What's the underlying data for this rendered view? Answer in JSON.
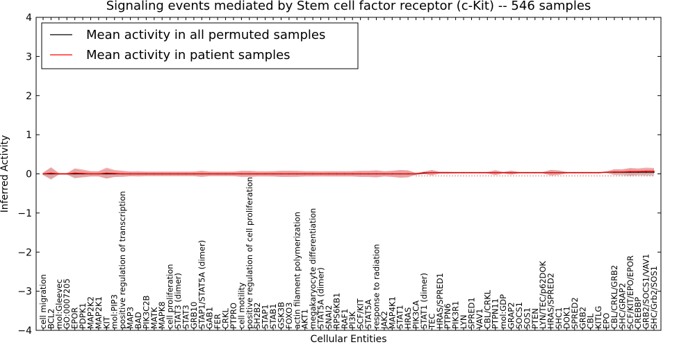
{
  "chart_data": {
    "type": "line",
    "title": "Signaling events mediated by Stem cell factor receptor (c-Kit) -- 546 samples",
    "xlabel": "Cellular Entities",
    "ylabel": "Inferred Activity",
    "ylim": [
      -4,
      4
    ],
    "yticks": [
      "−4",
      "−3",
      "−2",
      "−1",
      "0",
      "1",
      "2",
      "3",
      "4"
    ],
    "grid": false,
    "legend_position": "top-left",
    "colors": {
      "permuted": "#000000",
      "patient": "#ff0000",
      "patient_band": "#f08080",
      "permuted_band": "#b3b3b3"
    },
    "categories": [
      "cell migration",
      "BCL2",
      "mol:Gleevec",
      "GO:0007205",
      "EPOR",
      "PDPK1",
      "MAP2K2",
      "MAP2K1",
      "KIT",
      "mol:PIP3",
      "positive regulation of transcription",
      "MAP3",
      "BAD",
      "PIK3C2B",
      "MATK",
      "MAPK8",
      "cell proliferation",
      "STAT3 (dimer)",
      "STAT3",
      "GRB10",
      "STAP1/STAT5A (dimer)",
      "GAB1",
      "FER",
      "CRKL",
      "PTPRO",
      "cell motility",
      "positive regulation of cell proliferation",
      "SH2B2",
      "STAP1",
      "STAB1",
      "GSK3B",
      "FOXO3",
      "actin filament polymerization",
      "AKT1",
      "megakaryocyte differentiation",
      "STAT5A (dimer)",
      "SNAI2",
      "RPS6KB1",
      "RAF1",
      "PI3K",
      "SCF/KIT",
      "STAT5A",
      "response to radiation",
      "JAK2",
      "MAP4K1",
      "STAT1",
      "HRAS",
      "PIK3CA",
      "STAT1 (dimer)",
      "TEC",
      "HRAS/SPRED1",
      "PTPN6",
      "PIK3R1",
      "LYN",
      "SPRED1",
      "VAV1",
      "CBL/CRKL",
      "PTPN11",
      "mol:GDP",
      "GRAP2",
      "SOCS1",
      "SOS1",
      "PTEN",
      "LYN/TEC/p62DOK",
      "HRAS/SPRED2",
      "SHC1",
      "DOK1",
      "SPRED2",
      "GRB2",
      "CBL",
      "KITLG",
      "EPO",
      "CBL/CRKL/GRB2",
      "SHC/GRAP2",
      "SCF/KIT/EPO/EPOR",
      "CREBBP",
      "GRB2/SOCS1/VAV1",
      "SHC/Grb2/SOS1"
    ],
    "series": [
      {
        "name": "Mean activity in all permuted samples",
        "values": [
          0,
          0,
          0,
          0,
          0,
          0,
          0,
          0,
          0,
          0,
          0,
          0,
          0,
          0,
          0,
          0,
          0,
          0,
          0,
          0,
          0,
          0,
          0,
          0,
          0,
          0,
          0,
          0,
          0,
          0,
          0,
          0,
          0,
          0,
          0,
          0,
          0,
          0,
          0,
          0,
          0,
          0,
          0,
          0,
          0,
          0,
          0,
          0,
          0.02,
          0.03,
          0.03,
          0.03,
          0.03,
          0.03,
          0.03,
          0.03,
          0.03,
          0.03,
          0.03,
          0.03,
          0.03,
          0.03,
          0.03,
          0.03,
          0.03,
          0.03,
          0.03,
          0.03,
          0.03,
          0.03,
          0.03,
          0.04,
          0.04,
          0.04,
          0.04,
          0.04,
          0.04,
          0.04
        ],
        "spread": [
          0.03,
          0.15,
          0.02,
          0.02,
          0.12,
          0.08,
          0.06,
          0.06,
          0.12,
          0.08,
          0.06,
          0.06,
          0.05,
          0.05,
          0.05,
          0.05,
          0.05,
          0.05,
          0.05,
          0.05,
          0.07,
          0.05,
          0.05,
          0.05,
          0.05,
          0.06,
          0.06,
          0.05,
          0.05,
          0.06,
          0.07,
          0.07,
          0.06,
          0.06,
          0.06,
          0.05,
          0.06,
          0.06,
          0.06,
          0.06,
          0.07,
          0.07,
          0.08,
          0.06,
          0.07,
          0.09,
          0.08,
          0.03,
          0.03,
          0.06,
          0.03,
          0.03,
          0.02,
          0.02,
          0.02,
          0.02,
          0.02,
          0.06,
          0.02,
          0.05,
          0.02,
          0.02,
          0.02,
          0.02,
          0.07,
          0.06,
          0.02,
          0.02,
          0.02,
          0.02,
          0.02,
          0.02,
          0.07,
          0.08,
          0.1,
          0.08,
          0.09,
          0.09
        ]
      },
      {
        "name": "Mean activity in patient samples",
        "values": [
          0,
          0.02,
          0,
          0,
          0.02,
          0.01,
          0,
          0,
          0.02,
          0.01,
          0,
          0,
          0,
          0,
          0,
          0,
          0,
          0,
          0,
          0,
          0,
          0,
          0,
          0,
          0,
          0,
          0,
          0,
          0,
          0,
          0,
          0,
          0,
          0,
          0,
          0,
          0,
          0,
          0,
          0,
          0,
          0,
          0,
          0,
          0,
          0,
          0,
          0,
          0.03,
          0.03,
          0.03,
          0.03,
          0.03,
          0.03,
          0.03,
          0.03,
          0.03,
          0.03,
          0.03,
          0.03,
          0.03,
          0.03,
          0.03,
          0.03,
          0.03,
          0.03,
          0.03,
          0.03,
          0.03,
          0.03,
          0.03,
          0.04,
          0.05,
          0.05,
          0.06,
          0.06,
          0.07,
          0.07
        ],
        "spread": [
          0.03,
          0.15,
          0.02,
          0.02,
          0.12,
          0.1,
          0.07,
          0.07,
          0.14,
          0.09,
          0.08,
          0.06,
          0.07,
          0.06,
          0.06,
          0.06,
          0.06,
          0.06,
          0.06,
          0.06,
          0.08,
          0.06,
          0.06,
          0.06,
          0.06,
          0.08,
          0.08,
          0.07,
          0.07,
          0.07,
          0.08,
          0.08,
          0.08,
          0.07,
          0.07,
          0.07,
          0.07,
          0.07,
          0.07,
          0.07,
          0.08,
          0.08,
          0.09,
          0.07,
          0.08,
          0.1,
          0.09,
          0.02,
          0.03,
          0.07,
          0.02,
          0.02,
          0.02,
          0.02,
          0.02,
          0.02,
          0.02,
          0.06,
          0.02,
          0.05,
          0.02,
          0.02,
          0.02,
          0.02,
          0.07,
          0.05,
          0.02,
          0.02,
          0.02,
          0.02,
          0.02,
          0.02,
          0.07,
          0.06,
          0.09,
          0.08,
          0.09,
          0.08
        ]
      }
    ]
  }
}
